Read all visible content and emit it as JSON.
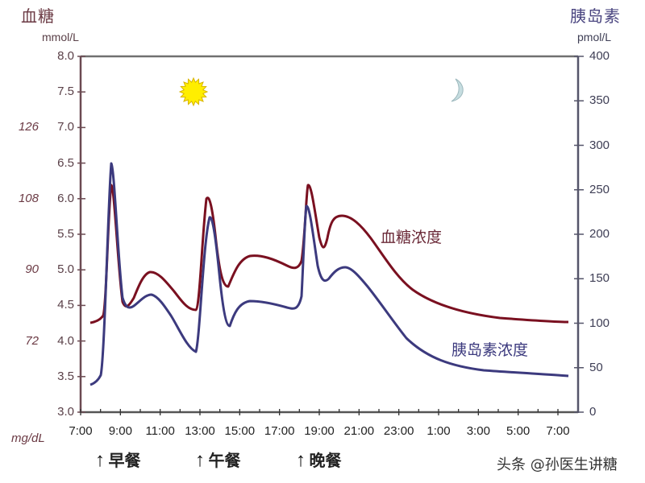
{
  "header": {
    "left_title": "血糖",
    "left_unit": "mmol/L",
    "right_title": "胰岛素",
    "right_unit": "pmol/L",
    "mgdl_label": "mg/dL"
  },
  "axes": {
    "left_ticks": [
      "8.0",
      "7.5",
      "7.0",
      "6.5",
      "6.0",
      "5.5",
      "5.0",
      "4.5",
      "4.0",
      "3.5",
      "3.0"
    ],
    "mgdl_ticks": [
      {
        "label": "126",
        "at": "7.0"
      },
      {
        "label": "108",
        "at": "6.0"
      },
      {
        "label": "90",
        "at": "5.0"
      },
      {
        "label": "72",
        "at": "4.0"
      }
    ],
    "right_ticks": [
      "400",
      "350",
      "300",
      "250",
      "200",
      "150",
      "100",
      "50",
      "0"
    ],
    "x_ticks": [
      "7:00",
      "9:00",
      "11:00",
      "13:00",
      "15:00",
      "17:00",
      "19:00",
      "21:00",
      "23:00",
      "1:00",
      "3:00",
      "5:00",
      "7:00"
    ]
  },
  "meals": [
    {
      "label": "早餐",
      "time": "8:00"
    },
    {
      "label": "午餐",
      "time": "13:00"
    },
    {
      "label": "晚餐",
      "time": "18:00"
    }
  ],
  "labels": {
    "glucose_series": "血糖浓度",
    "insulin_series": "胰岛素浓度",
    "watermark": "头条 @孙医生讲糖"
  },
  "icons": {
    "day": "sun-icon",
    "night": "moon-icon"
  },
  "colors": {
    "glucose": "#7a1020",
    "insulin": "#3c3a7e",
    "axis_left": "#6b4a52",
    "axis_right": "#55556a",
    "sun": "#ffee00",
    "moon": "#c6dde0"
  },
  "chart_data": {
    "type": "line",
    "title": "",
    "xlabel": "",
    "ylabel": "血糖 mmol/L",
    "ylabel_right": "胰岛素 pmol/L",
    "ylim": [
      3.0,
      8.0
    ],
    "ylim_right": [
      0,
      400
    ],
    "x": [
      "7:30",
      "8:00",
      "8:30",
      "9:00",
      "9:30",
      "10:30",
      "12:00",
      "12:45",
      "13:15",
      "13:45",
      "14:15",
      "15:00",
      "16:00",
      "17:30",
      "18:00",
      "18:20",
      "18:45",
      "19:00",
      "19:45",
      "20:30",
      "22:00",
      "23:30",
      "1:00",
      "3:00",
      "5:00",
      "7:00"
    ],
    "series": [
      {
        "name": "血糖浓度",
        "axis": "left",
        "unit": "mmol/L",
        "values": [
          4.27,
          4.33,
          6.2,
          5.0,
          4.45,
          4.95,
          4.5,
          4.45,
          6.02,
          5.0,
          4.78,
          5.18,
          5.15,
          5.05,
          5.2,
          6.2,
          5.3,
          5.75,
          5.72,
          5.4,
          4.8,
          4.5,
          4.38,
          4.32,
          4.29,
          4.28
        ]
      },
      {
        "name": "胰岛素浓度",
        "axis": "right",
        "unit": "pmol/L",
        "values": [
          31,
          40,
          280,
          130,
          125,
          132,
          82,
          66,
          220,
          175,
          96,
          125,
          122,
          117,
          120,
          231,
          150,
          152,
          162,
          145,
          90,
          60,
          45,
          40,
          37,
          33
        ]
      }
    ],
    "annotations": [
      "早餐 @ 8:00",
      "午餐 @ 13:00",
      "晚餐 @ 18:00",
      "sun (daytime)",
      "moon (night)"
    ],
    "grid": false,
    "legend_position": "inline labels"
  }
}
